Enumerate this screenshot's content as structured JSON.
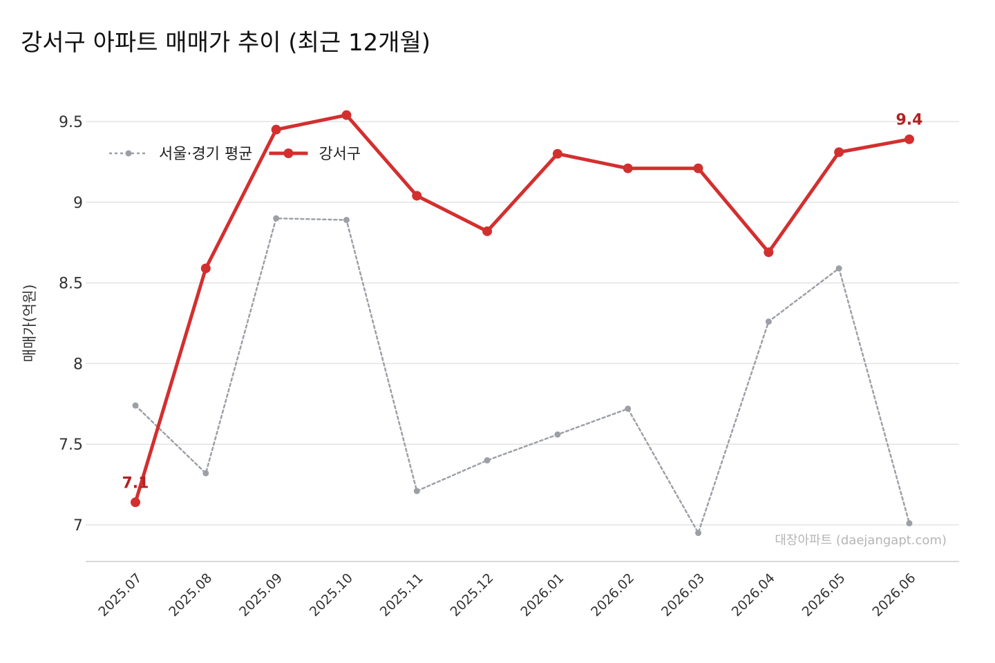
{
  "title": "강서구 아파트 매매가 추이 (최근 12개월)",
  "watermark": "대장아파트 (daejangapt.com)",
  "chart_data": {
    "type": "line",
    "title": "강서구 아파트 매매가 추이 (최근 12개월)",
    "xlabel": "",
    "ylabel": "매매가(억원)",
    "categories": [
      "2025.07",
      "2025.08",
      "2025.09",
      "2025.10",
      "2025.11",
      "2025.12",
      "2026.01",
      "2026.02",
      "2026.03",
      "2026.04",
      "2026.05",
      "2026.06"
    ],
    "yticks": [
      "7",
      "7.5",
      "8",
      "8.5",
      "9",
      "9.5"
    ],
    "ylim": [
      6.78,
      9.72
    ],
    "grid": true,
    "legend_position": "top-left",
    "series": [
      {
        "name": "서울·경기 평균",
        "color": "#9ca0a6",
        "style": "dotted",
        "values": [
          7.74,
          7.32,
          8.9,
          8.89,
          7.21,
          7.4,
          7.56,
          7.72,
          6.95,
          8.26,
          8.59,
          7.01
        ]
      },
      {
        "name": "강서구",
        "color": "#d32f2f",
        "style": "solid",
        "values": [
          7.14,
          8.59,
          9.45,
          9.54,
          9.04,
          8.82,
          9.3,
          9.21,
          9.21,
          8.69,
          9.31,
          9.39
        ]
      }
    ],
    "annotations": [
      {
        "label": "7.1",
        "series": "강서구",
        "category": "2025.07",
        "color": "#b22222"
      },
      {
        "label": "9.4",
        "series": "강서구",
        "category": "2026.06",
        "color": "#b22222"
      }
    ]
  }
}
